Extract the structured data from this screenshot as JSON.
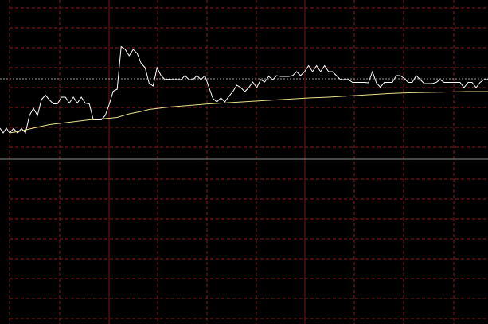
{
  "chart_data": {
    "type": "line",
    "title": "",
    "xlabel": "",
    "ylabel": "",
    "grid": true,
    "legend": "none",
    "xlim": [
      0,
      120
    ],
    "ylim": [
      0,
      80
    ],
    "reference_y": 40,
    "colors": {
      "background": "#000000",
      "grid": "#8a1c1c",
      "major_grid": "#7a1414",
      "reference": "#8c8c8c",
      "dotted_level": "#9a9a9a",
      "price": "#ffffff",
      "average": "#e8e08a"
    },
    "dotted_level_y": 60.2,
    "series": [
      {
        "role": "price",
        "points": [
          [
            0,
            46.6
          ],
          [
            1,
            47.7
          ],
          [
            2,
            46.6
          ],
          [
            3,
            47.7
          ],
          [
            4,
            46.6
          ],
          [
            5,
            51.0
          ],
          [
            6,
            52.8
          ],
          [
            7,
            51.0
          ],
          [
            8,
            55.0
          ],
          [
            9,
            56.1
          ],
          [
            10,
            54.9
          ],
          [
            11,
            53.9
          ],
          [
            12,
            53.9
          ],
          [
            13,
            55.6
          ],
          [
            14,
            55.6
          ],
          [
            15,
            54.1
          ],
          [
            16,
            55.6
          ],
          [
            17,
            54.1
          ],
          [
            18,
            55.6
          ],
          [
            19,
            54.1
          ],
          [
            20,
            53.9
          ],
          [
            21,
            49.9
          ],
          [
            22,
            49.9
          ],
          [
            23,
            49.9
          ],
          [
            24,
            51.0
          ],
          [
            25,
            53.8
          ],
          [
            26,
            57.1
          ],
          [
            27,
            57.6
          ],
          [
            28,
            68.3
          ],
          [
            29,
            67.6
          ],
          [
            30,
            66.0
          ],
          [
            31,
            67.6
          ],
          [
            32,
            66.6
          ],
          [
            33,
            64.1
          ],
          [
            34,
            63.0
          ],
          [
            35,
            59.1
          ],
          [
            36,
            58.4
          ],
          [
            37,
            63.0
          ],
          [
            38,
            61.0
          ],
          [
            39,
            60.0
          ],
          [
            40,
            60.1
          ],
          [
            41,
            60.0
          ],
          [
            42,
            60.0
          ],
          [
            43,
            60.0
          ],
          [
            44,
            61.0
          ],
          [
            45,
            60.0
          ],
          [
            46,
            60.0
          ],
          [
            47,
            61.0
          ],
          [
            48,
            60.0
          ],
          [
            49,
            61.0
          ],
          [
            50,
            58.1
          ],
          [
            51,
            55.3
          ],
          [
            52,
            54.4
          ],
          [
            53,
            55.4
          ],
          [
            54,
            54.4
          ],
          [
            55,
            55.8
          ],
          [
            56,
            57.0
          ],
          [
            57,
            58.6
          ],
          [
            58,
            58.0
          ],
          [
            59,
            57.0
          ],
          [
            60,
            58.0
          ],
          [
            61,
            59.4
          ],
          [
            62,
            58.0
          ],
          [
            63,
            60.0
          ],
          [
            64,
            59.4
          ],
          [
            65,
            60.8
          ],
          [
            66,
            60.0
          ],
          [
            67,
            61.0
          ],
          [
            68,
            60.8
          ],
          [
            69,
            60.8
          ],
          [
            70,
            60.8
          ],
          [
            71,
            61.0
          ],
          [
            72,
            62.0
          ],
          [
            73,
            61.0
          ],
          [
            74,
            62.0
          ],
          [
            75,
            63.5
          ],
          [
            76,
            62.0
          ],
          [
            77,
            63.5
          ],
          [
            78,
            62.0
          ],
          [
            79,
            63.5
          ],
          [
            80,
            62.0
          ],
          [
            81,
            62.0
          ],
          [
            82,
            61.0
          ],
          [
            83,
            60.0
          ],
          [
            84,
            60.0
          ],
          [
            85,
            60.0
          ],
          [
            86,
            59.3
          ],
          [
            87,
            59.3
          ],
          [
            88,
            59.3
          ],
          [
            89,
            59.3
          ],
          [
            90,
            59.2
          ],
          [
            91,
            62.0
          ],
          [
            92,
            59.2
          ],
          [
            93,
            58.1
          ],
          [
            94,
            59.3
          ],
          [
            95,
            59.3
          ],
          [
            96,
            59.3
          ],
          [
            97,
            61.0
          ],
          [
            98,
            61.0
          ],
          [
            99,
            60.3
          ],
          [
            100,
            59.3
          ],
          [
            101,
            59.3
          ],
          [
            102,
            61.0
          ],
          [
            103,
            60.0
          ],
          [
            104,
            59.0
          ],
          [
            105,
            59.0
          ],
          [
            106,
            59.0
          ],
          [
            107,
            59.3
          ],
          [
            108,
            60.0
          ],
          [
            109,
            59.3
          ],
          [
            110,
            59.3
          ],
          [
            111,
            59.3
          ],
          [
            112,
            59.3
          ],
          [
            113,
            59.3
          ],
          [
            114,
            58.0
          ],
          [
            115,
            59.3
          ],
          [
            116,
            59.3
          ],
          [
            117,
            58.0
          ],
          [
            118,
            59.3
          ],
          [
            119,
            60.0
          ],
          [
            120,
            60.0
          ]
        ]
      },
      {
        "role": "average",
        "points": [
          [
            0,
            46.6
          ],
          [
            3,
            47.1
          ],
          [
            5,
            47.6
          ],
          [
            10,
            48.7
          ],
          [
            15,
            49.3
          ],
          [
            20,
            49.9
          ],
          [
            25,
            50.3
          ],
          [
            27,
            50.5
          ],
          [
            30,
            51.4
          ],
          [
            33,
            52.0
          ],
          [
            35,
            52.5
          ],
          [
            40,
            53.1
          ],
          [
            45,
            53.5
          ],
          [
            50,
            53.9
          ],
          [
            55,
            54.2
          ],
          [
            60,
            54.5
          ],
          [
            65,
            54.8
          ],
          [
            70,
            55.1
          ],
          [
            75,
            55.4
          ],
          [
            80,
            55.6
          ],
          [
            85,
            55.9
          ],
          [
            90,
            56.2
          ],
          [
            95,
            56.5
          ],
          [
            100,
            56.7
          ],
          [
            105,
            56.8
          ],
          [
            110,
            56.9
          ],
          [
            115,
            57.0
          ],
          [
            120,
            57.0
          ]
        ]
      }
    ]
  }
}
